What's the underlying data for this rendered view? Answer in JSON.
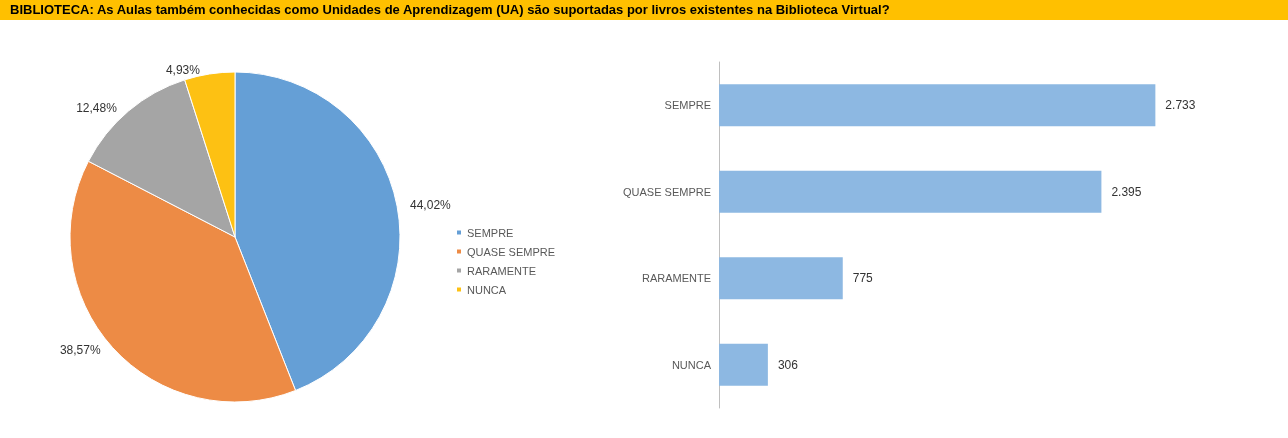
{
  "chart_data": [
    {
      "type": "pie",
      "title": "BIBLIOTECA: As Aulas também conhecidas como Unidades de Aprendizagem (UA) são suportadas por livros existentes na Biblioteca Virtual?",
      "categories": [
        "SEMPRE",
        "QUASE SEMPRE",
        "RARAMENTE",
        "NUNCA"
      ],
      "values": [
        44.02,
        38.57,
        12.48,
        4.93
      ],
      "colors": [
        "#659fd6",
        "#ed8b45",
        "#a5a5a5",
        "#fdc113"
      ],
      "value_labels": [
        "44,02%",
        "38,57%",
        "12,48%",
        "4,93%"
      ],
      "legend": "right"
    },
    {
      "type": "bar",
      "orientation": "horizontal",
      "categories": [
        "SEMPRE",
        "QUASE SEMPRE",
        "RARAMENTE",
        "NUNCA"
      ],
      "values": [
        2733,
        2395,
        775,
        306
      ],
      "color": "#8db8e2",
      "value_labels": [
        "2.733",
        "2.395",
        "775",
        "306"
      ]
    }
  ]
}
